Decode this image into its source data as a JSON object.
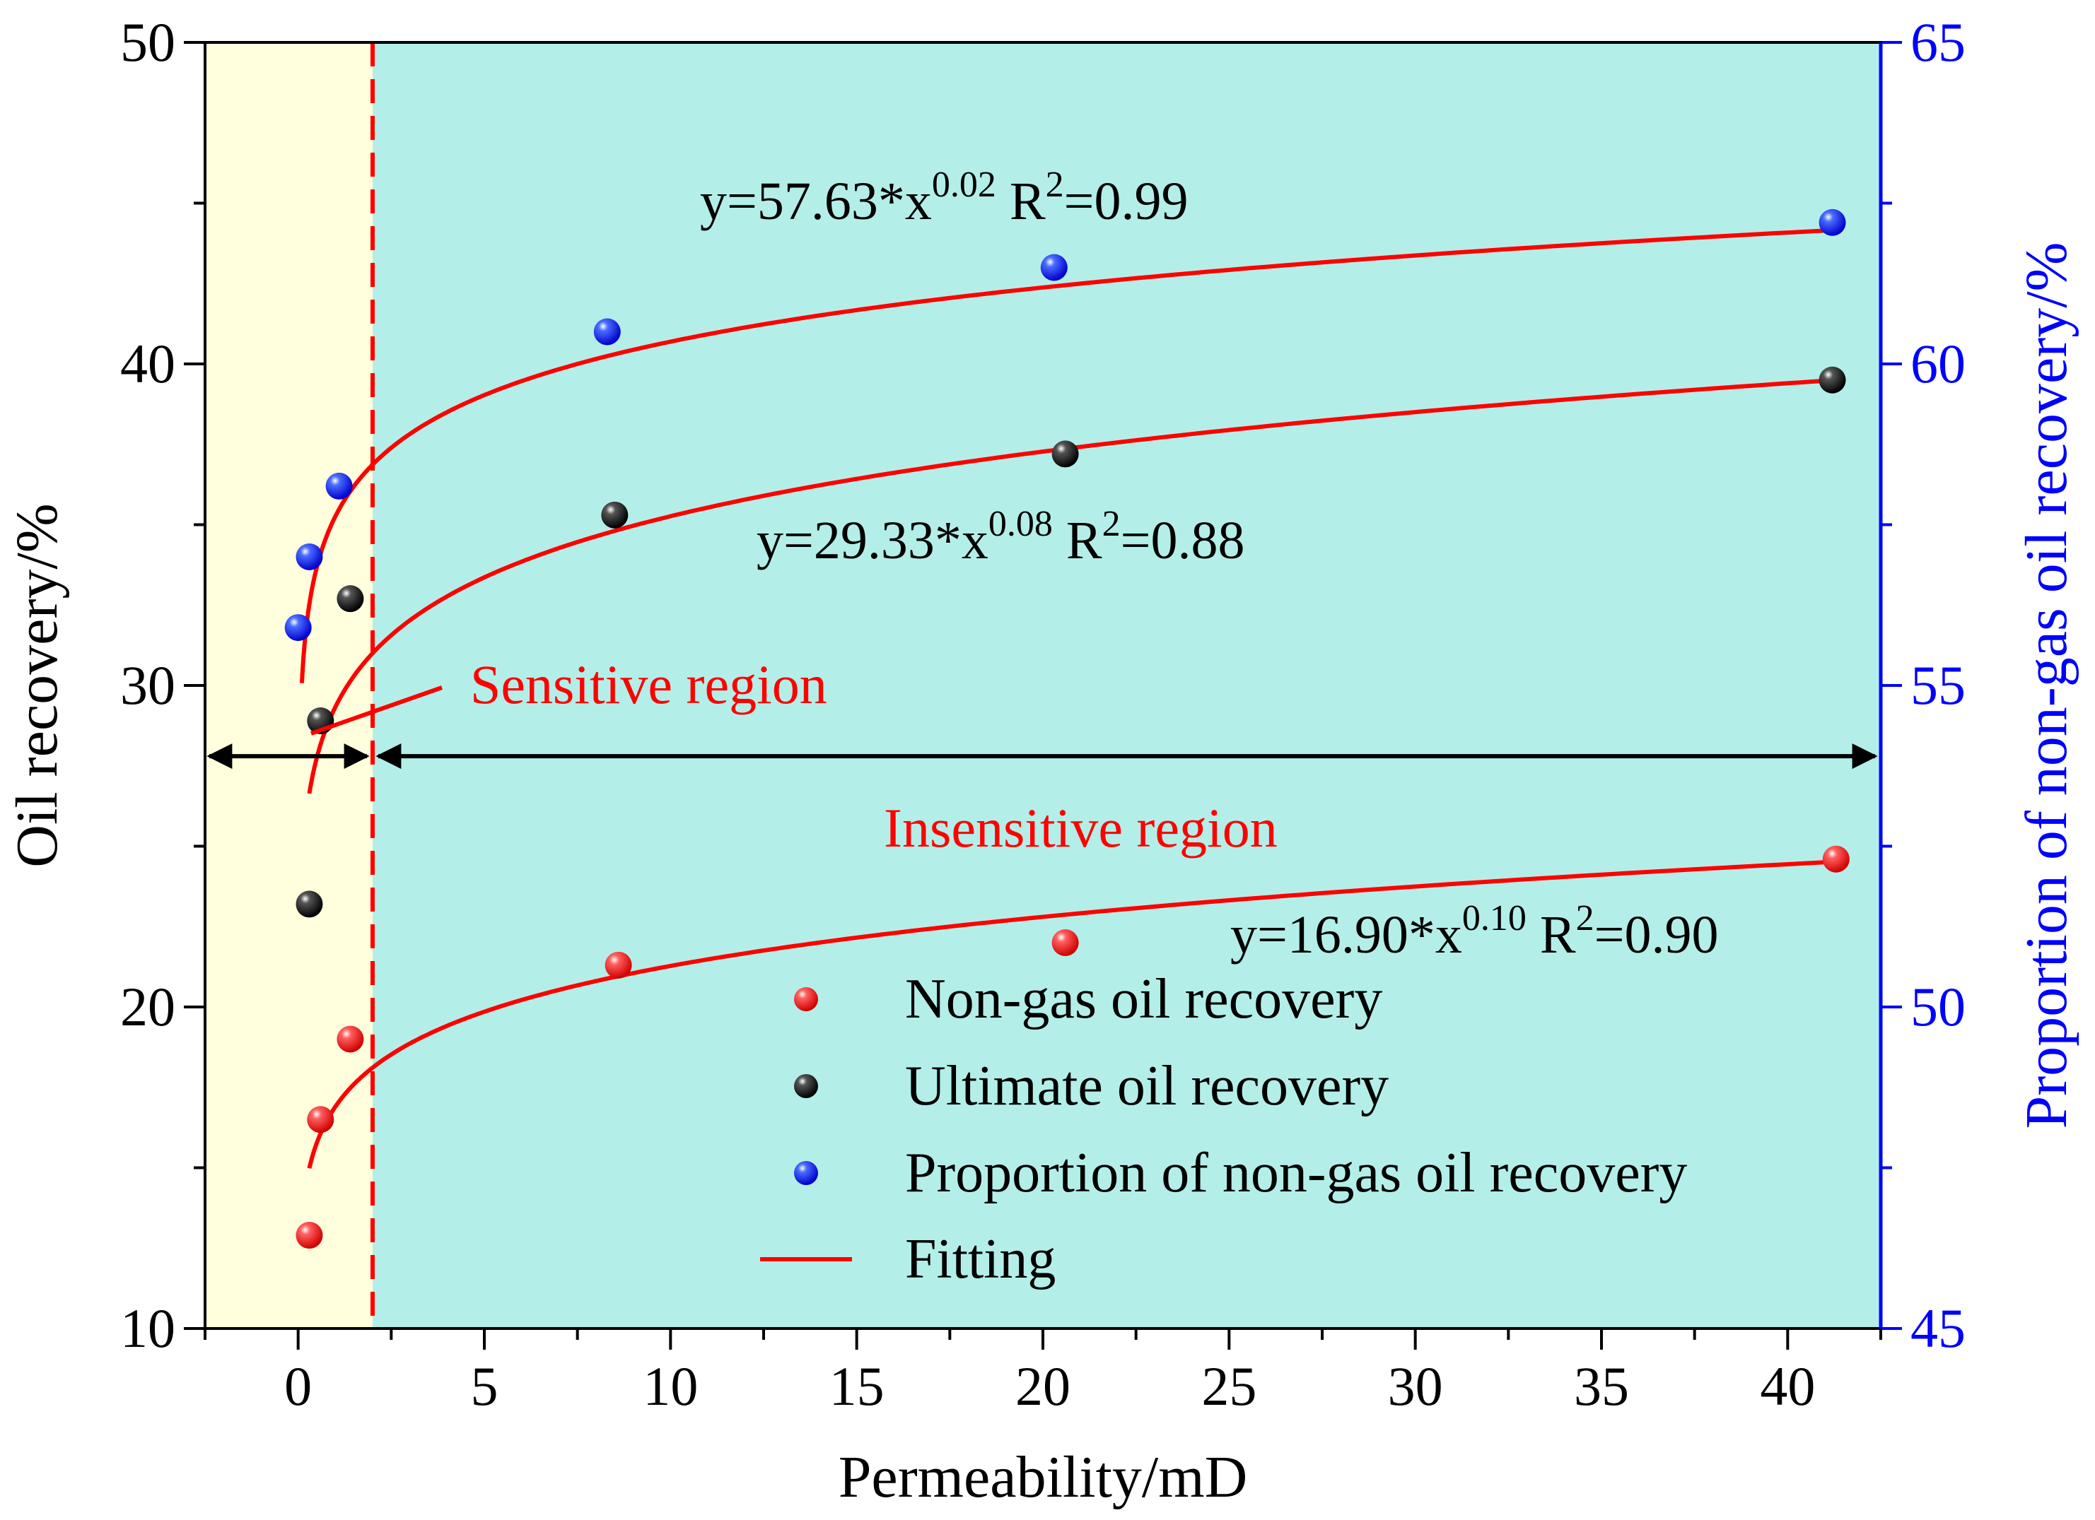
{
  "chart_data": {
    "type": "scatter",
    "xlabel": "Permeability/mD",
    "ylabel_left": "Oil recovery/%",
    "ylabel_right": "Proportion of non-gas oil recovery/%",
    "xlim": [
      -2.5,
      42.5
    ],
    "ylim_left": [
      10,
      50
    ],
    "ylim_right": [
      45,
      65
    ],
    "x_ticks": [
      0,
      5,
      10,
      15,
      20,
      25,
      30,
      35,
      40
    ],
    "y_ticks_left": [
      10,
      20,
      30,
      40,
      50
    ],
    "y_ticks_right": [
      45,
      50,
      55,
      60,
      65
    ],
    "region_boundary_x": 2.0,
    "region_arrow_y": 27.8,
    "colors": {
      "sensitive_bg": "#ffffdd",
      "insensitive_bg": "#b3efe8",
      "fit": "#ff0000",
      "nongas": "#ff0000",
      "ultimate": "#000000",
      "proportion": "#0000ff",
      "right_axis": "#0000ff"
    },
    "series": [
      {
        "name": "Non-gas oil recovery",
        "axis": "left",
        "color": "#ff0000",
        "x": [
          0.3,
          0.6,
          1.4,
          8.6,
          20.6,
          41.3
        ],
        "y": [
          12.9,
          16.5,
          19.0,
          21.3,
          22.0,
          24.6
        ]
      },
      {
        "name": "Ultimate oil recovery",
        "axis": "left",
        "color": "#000000",
        "x": [
          0.3,
          0.6,
          1.4,
          8.5,
          20.6,
          41.2
        ],
        "y": [
          23.2,
          28.9,
          32.7,
          35.3,
          37.2,
          39.5
        ]
      },
      {
        "name": "Proportion of non-gas oil recovery",
        "axis": "right",
        "color": "#0000ff",
        "x": [
          0.0,
          0.3,
          1.1,
          8.3,
          20.3,
          41.2
        ],
        "y": [
          55.9,
          57.0,
          58.1,
          60.5,
          61.5,
          62.2
        ]
      }
    ],
    "fits": [
      {
        "axis": "left",
        "a": 16.9,
        "b": 0.1,
        "x_start": 0.3,
        "x_end": 41.3,
        "equation_parts": [
          "y=16.90*x",
          "0.10",
          " R",
          "2",
          "=0.90"
        ]
      },
      {
        "axis": "left",
        "a": 29.33,
        "b": 0.08,
        "x_start": 0.3,
        "x_end": 41.2,
        "equation_parts": [
          "y=29.33*x",
          "0.08",
          " R",
          "2",
          "=0.88"
        ]
      },
      {
        "axis": "right",
        "a": 57.63,
        "b": 0.02,
        "x_start": 0.1,
        "x_end": 41.2,
        "equation_parts": [
          "y=57.63*x",
          "0.02",
          " R",
          "2",
          "=0.99"
        ]
      }
    ],
    "annotations": {
      "sensitive": "Sensitive region",
      "insensitive": "Insensitive region"
    },
    "legend": {
      "items": [
        "Non-gas oil recovery",
        "Ultimate oil recovery",
        "Proportion of non-gas oil recovery",
        "Fitting"
      ]
    }
  }
}
